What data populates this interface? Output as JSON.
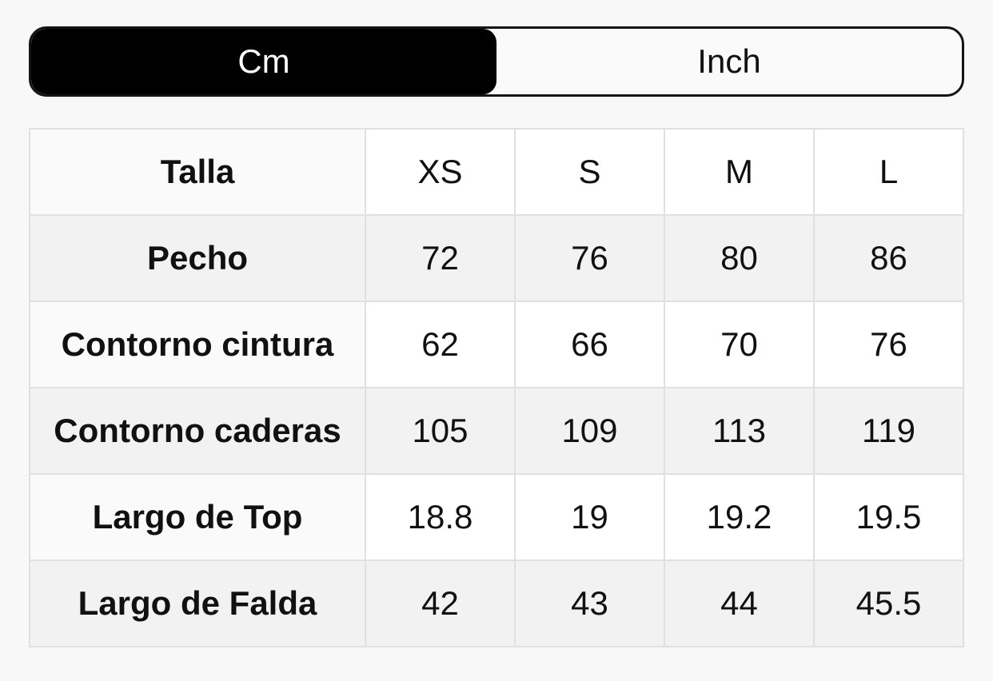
{
  "unit_toggle": {
    "options": [
      {
        "label": "Cm",
        "selected": true
      },
      {
        "label": "Inch",
        "selected": false
      }
    ]
  },
  "size_chart": {
    "header_label": "Talla",
    "sizes": [
      "XS",
      "S",
      "M",
      "L"
    ],
    "rows": [
      {
        "label": "Pecho",
        "values": [
          "72",
          "76",
          "80",
          "86"
        ]
      },
      {
        "label": "Contorno cintura",
        "values": [
          "62",
          "66",
          "70",
          "76"
        ]
      },
      {
        "label": "Contorno caderas",
        "values": [
          "105",
          "109",
          "113",
          "119"
        ]
      },
      {
        "label": "Largo de Top",
        "values": [
          "18.8",
          "19",
          "19.2",
          "19.5"
        ]
      },
      {
        "label": "Largo de Falda",
        "values": [
          "42",
          "43",
          "44",
          "45.5"
        ]
      }
    ]
  },
  "colors": {
    "page_bg": "#f8f8f8",
    "toggle_border": "#141414",
    "toggle_selected_bg": "#000000",
    "toggle_selected_text": "#ffffff",
    "toggle_unselected_bg": "#fafafa",
    "cell_border": "#e0e0e0",
    "label_cell_bg": "#fafafa",
    "row_alt_bg": "#f2f2f2"
  }
}
